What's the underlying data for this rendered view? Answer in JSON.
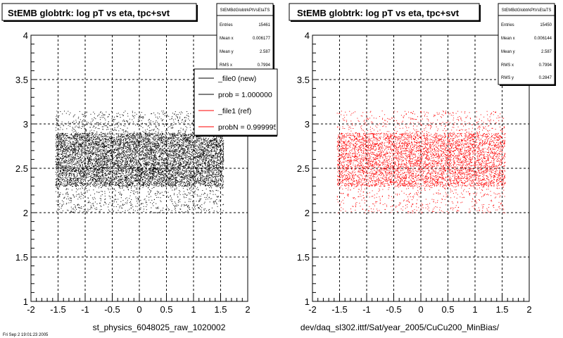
{
  "chart_data": [
    {
      "type": "scatter",
      "title": "StEMB globtrk: log pT vs eta, tpc+svt",
      "xlabel": "st_physics_6048025_raw_1020002",
      "xlim": [
        -2,
        2
      ],
      "ylim": [
        1,
        4
      ],
      "xticks": [
        "-2",
        "-1.5",
        "-1",
        "-0.5",
        "0",
        "0.5",
        "1",
        "1.5",
        "2"
      ],
      "yticks": [
        "1",
        "1.5",
        "2",
        "2.5",
        "3",
        "3.5",
        "4"
      ],
      "grid": true,
      "marker_color": "#000000",
      "distribution": {
        "x_range": [
          -1.55,
          1.55
        ],
        "y_range": [
          2.0,
          3.15
        ],
        "dense_y": [
          2.3,
          2.9
        ],
        "n_points_drawn": 9000
      },
      "stats": {
        "name": "StEMBdGlobtrkPtVsEtaTS",
        "rows": [
          {
            "label": "Entries",
            "value": "15461"
          },
          {
            "label": "Mean x",
            "value": "0.006177"
          },
          {
            "label": "Mean y",
            "value": "2.587"
          },
          {
            "label": "RMS x",
            "value": "0.7994"
          }
        ]
      },
      "legend": {
        "position": "top-right",
        "entries": [
          {
            "label": "_file0 (new)",
            "color": "#000000"
          },
          {
            "label": "prob = 1.000000",
            "color": "#000000"
          },
          {
            "label": "_file1 (ref)",
            "color": "#ff0000"
          },
          {
            "label": "probN = 0.999995",
            "color": "#ff0000"
          }
        ]
      }
    },
    {
      "type": "scatter",
      "title": "StEMB globtrk: log pT vs eta, tpc+svt",
      "xlabel": "dev/daq_sl302.ittf/Sat/year_2005/CuCu200_MinBias/",
      "xlim": [
        -2,
        2
      ],
      "ylim": [
        1,
        4
      ],
      "xticks": [
        "-2",
        "-1.5",
        "-1",
        "-0.5",
        "0",
        "0.5",
        "1",
        "1.5",
        "2"
      ],
      "yticks": [
        "1",
        "1.5",
        "2",
        "2.5",
        "3",
        "3.5",
        "4"
      ],
      "grid": true,
      "marker_color": "#ff0000",
      "distribution": {
        "x_range": [
          -1.55,
          1.55
        ],
        "y_range": [
          2.0,
          3.15
        ],
        "dense_y": [
          2.3,
          2.9
        ],
        "n_points_drawn": 6000
      },
      "stats": {
        "name": "StEMBdGlobtrkPtVsEtaTS",
        "rows": [
          {
            "label": "Entries",
            "value": "15450"
          },
          {
            "label": "Mean x",
            "value": "0.006144"
          },
          {
            "label": "Mean y",
            "value": "2.587"
          },
          {
            "label": "RMS x",
            "value": "0.7994"
          },
          {
            "label": "RMS y",
            "value": "0.2847"
          }
        ]
      }
    }
  ],
  "footer_text": "Fri Sep  2 19:01:23 2005"
}
